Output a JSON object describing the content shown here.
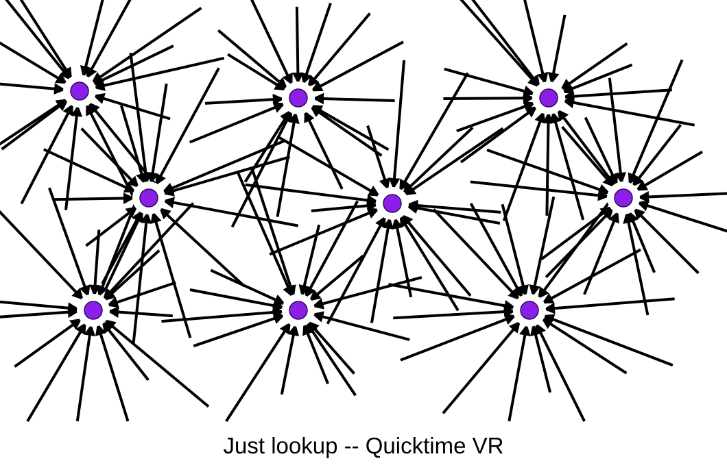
{
  "caption": "Just lookup -- Quicktime VR",
  "colors": {
    "node_fill": "#8b1fe8",
    "node_stroke": "#2a0a5a",
    "arrow": "#000000",
    "background": "#ffffff"
  },
  "diagram": {
    "nodes": [
      {
        "id": "n1"
      },
      {
        "id": "n2"
      },
      {
        "id": "n3"
      },
      {
        "id": "n4"
      },
      {
        "id": "n5"
      },
      {
        "id": "n6"
      },
      {
        "id": "n7"
      },
      {
        "id": "n8"
      },
      {
        "id": "n9"
      }
    ]
  }
}
